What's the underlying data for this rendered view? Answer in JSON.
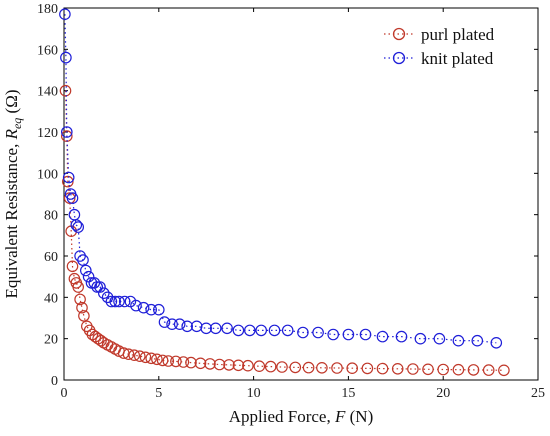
{
  "chart_data": {
    "type": "scatter",
    "xlabel_prefix": "Applied Force, ",
    "xlabel_var": "F",
    "xlabel_unit": " (N)",
    "ylabel_prefix": "Equivalent Resistance, ",
    "ylabel_var": "R",
    "ylabel_sub": "eq",
    "ylabel_unit": " (Ω)",
    "xlim": [
      0,
      25
    ],
    "ylim": [
      0,
      180
    ],
    "x_ticks": [
      "0",
      "5",
      "10",
      "15",
      "20",
      "25"
    ],
    "y_ticks": [
      "0",
      "20",
      "40",
      "60",
      "80",
      "100",
      "120",
      "140",
      "160",
      "180"
    ],
    "grid": false,
    "legend_position": "top-right",
    "series": [
      {
        "name": "purl plated",
        "color": "#c0392b",
        "marker": "circle",
        "line": "dotted",
        "x": [
          0.08,
          0.15,
          0.2,
          0.3,
          0.38,
          0.45,
          0.55,
          0.65,
          0.75,
          0.85,
          0.95,
          1.05,
          1.2,
          1.35,
          1.5,
          1.65,
          1.8,
          1.95,
          2.1,
          2.3,
          2.5,
          2.7,
          2.9,
          3.15,
          3.4,
          3.7,
          4.0,
          4.3,
          4.6,
          4.9,
          5.2,
          5.5,
          5.9,
          6.3,
          6.7,
          7.2,
          7.7,
          8.2,
          8.7,
          9.2,
          9.7,
          10.3,
          10.9,
          11.5,
          12.2,
          12.9,
          13.6,
          14.4,
          15.2,
          16.0,
          16.8,
          17.6,
          18.4,
          19.2,
          20.0,
          20.8,
          21.6,
          22.4,
          23.2
        ],
        "y": [
          140,
          118,
          96,
          88,
          72,
          55,
          49,
          47,
          45,
          39,
          35,
          31,
          26,
          24,
          22,
          21,
          20,
          19,
          18,
          17,
          16,
          15,
          14,
          13,
          12.5,
          12,
          11.5,
          11,
          10.5,
          10,
          9.5,
          9.2,
          9,
          8.7,
          8.4,
          8.1,
          7.8,
          7.5,
          7.3,
          7.1,
          6.9,
          6.7,
          6.5,
          6.3,
          6.1,
          6,
          5.9,
          5.8,
          5.7,
          5.6,
          5.5,
          5.4,
          5.3,
          5.2,
          5.1,
          5,
          4.9,
          4.8,
          4.7
        ]
      },
      {
        "name": "knit plated",
        "color": "#1f1fd8",
        "marker": "circle",
        "line": "dotted",
        "x": [
          0.05,
          0.1,
          0.15,
          0.25,
          0.35,
          0.45,
          0.55,
          0.65,
          0.75,
          0.85,
          1.0,
          1.15,
          1.3,
          1.45,
          1.6,
          1.75,
          1.9,
          2.1,
          2.3,
          2.5,
          2.7,
          2.9,
          3.2,
          3.5,
          3.8,
          4.2,
          4.6,
          5.0,
          5.3,
          5.7,
          6.1,
          6.5,
          7.0,
          7.5,
          8.0,
          8.6,
          9.2,
          9.8,
          10.4,
          11.1,
          11.8,
          12.6,
          13.4,
          14.2,
          15.0,
          15.9,
          16.8,
          17.8,
          18.8,
          19.8,
          20.8,
          21.8,
          22.8
        ],
        "y": [
          177,
          156,
          120,
          98,
          90,
          88,
          80,
          75,
          74,
          60,
          58,
          53,
          50,
          47,
          47,
          45,
          45,
          42,
          40,
          38,
          38,
          38,
          38,
          38,
          36,
          35,
          34,
          34,
          28,
          27,
          27,
          26,
          26,
          25,
          25,
          25,
          24,
          24,
          24,
          24,
          24,
          23,
          23,
          22,
          22,
          22,
          21,
          21,
          20,
          20,
          19,
          19,
          18
        ]
      }
    ]
  }
}
